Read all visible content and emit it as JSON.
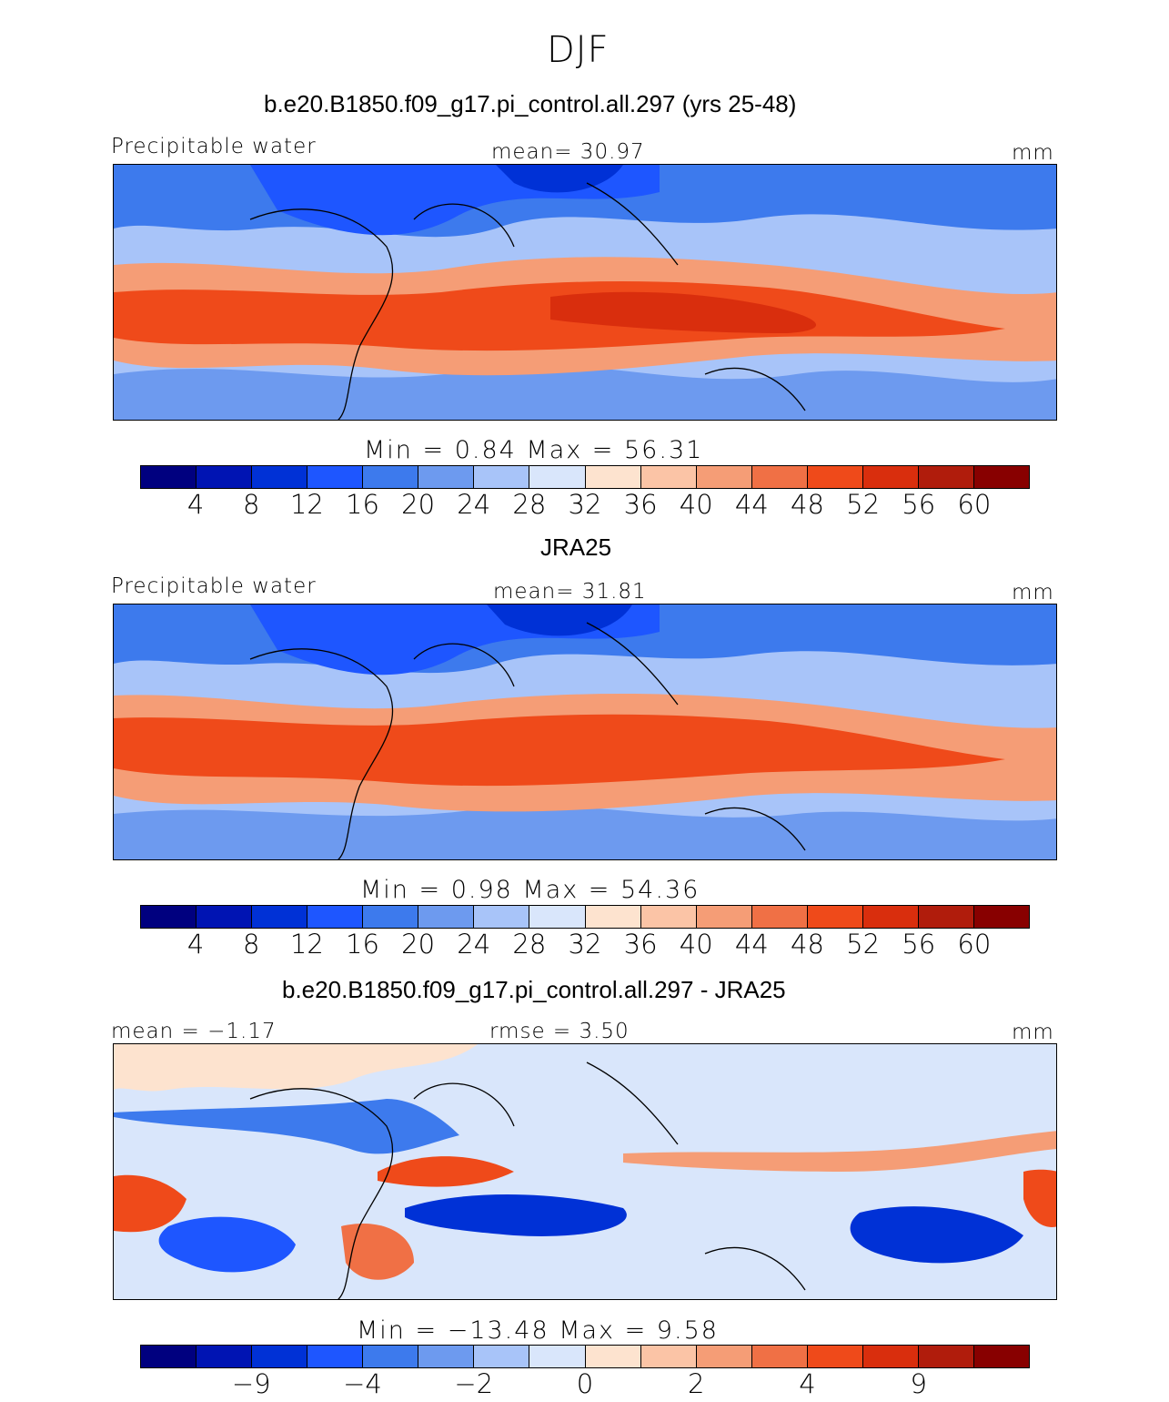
{
  "figure_title": "DJF",
  "panels": [
    {
      "title": "b.e20.B1850.f09_g17.pi_control.all.297 (yrs 25-48)",
      "left_label": "Precipitable water",
      "center_label": "mean=  30.97",
      "units": "mm",
      "minmax": "Min =    0.84 Max =   56.31"
    },
    {
      "title": "JRA25",
      "left_label": "Precipitable water",
      "center_label": "mean=  31.81",
      "units": "mm",
      "minmax": "Min =    0.98 Max =   54.36"
    },
    {
      "title": "b.e20.B1850.f09_g17.pi_control.all.297 - JRA25",
      "left_label": "mean =  −1.17",
      "center_label": "rmse =    3.50",
      "units": "mm",
      "minmax": "Min = −13.48 Max =    9.58"
    }
  ],
  "colorbars": {
    "abs_colors": [
      "#00007f",
      "#0014b3",
      "#0031d6",
      "#1e56ff",
      "#3d7aed",
      "#6d9aef",
      "#a8c4f9",
      "#d9e6fb",
      "#fde3cf",
      "#fbc4a6",
      "#f59d76",
      "#f07045",
      "#ef4a1a",
      "#d92e0d",
      "#b01c0c",
      "#880000"
    ],
    "abs_ticks": [
      "4",
      "8",
      "12",
      "16",
      "20",
      "24",
      "28",
      "32",
      "36",
      "40",
      "44",
      "48",
      "52",
      "56",
      "60"
    ],
    "diff_colors": [
      "#00007f",
      "#0014b3",
      "#0031d6",
      "#1e56ff",
      "#3d7aed",
      "#6d9aef",
      "#a8c4f9",
      "#d9e6fb",
      "#fde3cf",
      "#fbc4a6",
      "#f59d76",
      "#f07045",
      "#ef4a1a",
      "#d92e0d",
      "#b01c0c",
      "#880000"
    ],
    "diff_ticks": [
      "−9",
      "−4",
      "−2",
      "0",
      "2",
      "4",
      "9"
    ]
  },
  "chart_data": [
    {
      "type": "heatmap",
      "title": "b.e20.B1850.f09_g17.pi_control.all.297 (yrs 25-48)",
      "variable": "Precipitable water",
      "units": "mm",
      "mean": 30.97,
      "min": 0.84,
      "max": 56.31,
      "levels": [
        4,
        8,
        12,
        16,
        20,
        24,
        28,
        32,
        36,
        40,
        44,
        48,
        52,
        56,
        60
      ]
    },
    {
      "type": "heatmap",
      "title": "JRA25",
      "variable": "Precipitable water",
      "units": "mm",
      "mean": 31.81,
      "min": 0.98,
      "max": 54.36,
      "levels": [
        4,
        8,
        12,
        16,
        20,
        24,
        28,
        32,
        36,
        40,
        44,
        48,
        52,
        56,
        60
      ]
    },
    {
      "type": "heatmap",
      "title": "b.e20.B1850.f09_g17.pi_control.all.297 - JRA25",
      "units": "mm",
      "mean": -1.17,
      "rmse": 3.5,
      "min": -13.48,
      "max": 9.58,
      "levels": [
        -9,
        -4,
        -2,
        0,
        2,
        4,
        9
      ]
    }
  ]
}
